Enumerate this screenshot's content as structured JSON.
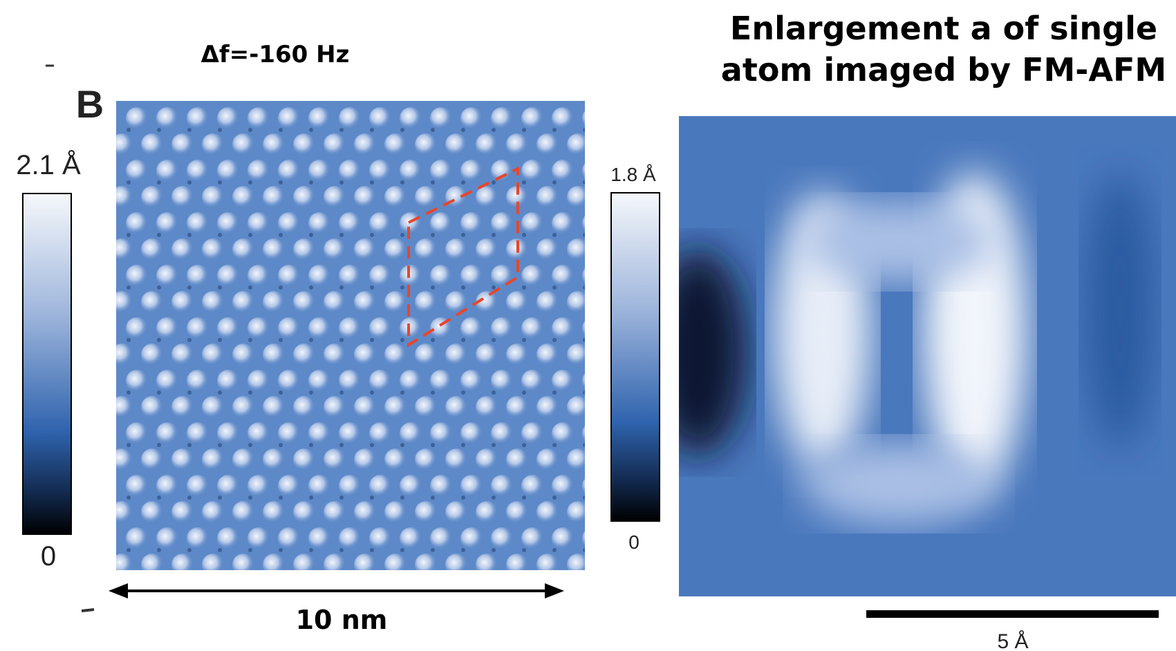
{
  "left_panel": {
    "frequency_shift": "Δf=-160 Hz",
    "panel_label": "B",
    "colorbar": {
      "max_label": "2.1 Å",
      "min_label": "0"
    },
    "scale_label": "10 nm"
  },
  "right_panel": {
    "title_lines": [
      "Enlargement a of single",
      "atom imaged by FM-AFM"
    ],
    "colorbar": {
      "max_label": "1.8 Å",
      "min_label": "0"
    },
    "scale_label": "5 Å"
  }
}
